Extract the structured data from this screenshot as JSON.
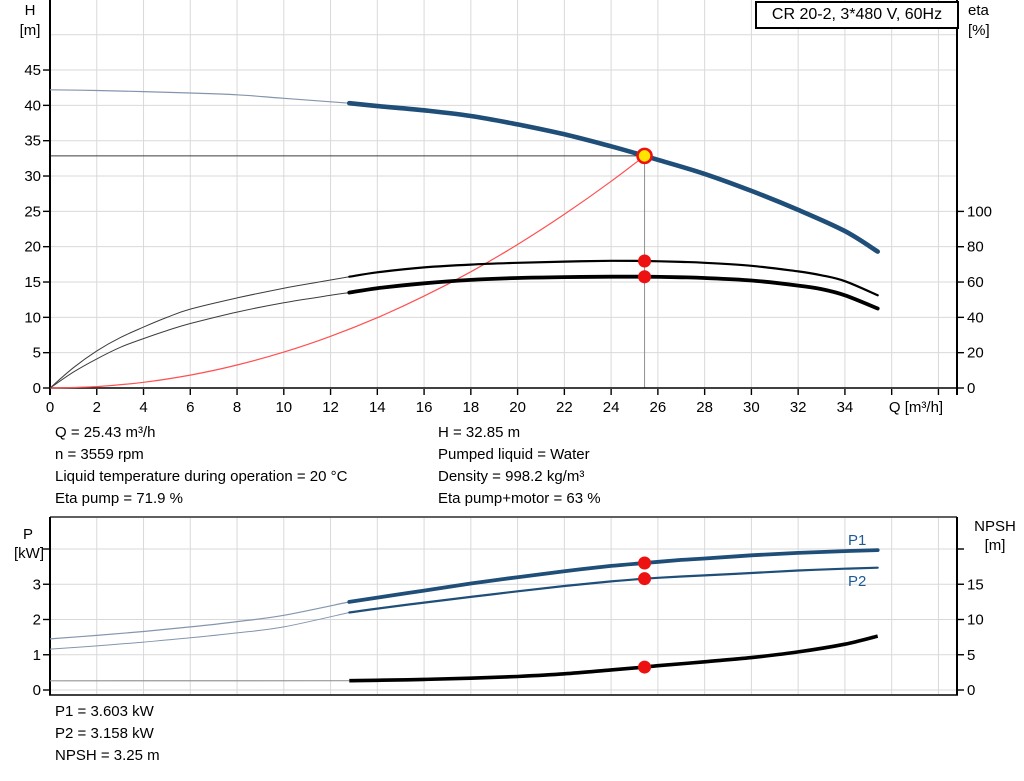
{
  "legend": {
    "label": "CR 20-2, 3*480 V, 60Hz"
  },
  "axis_titles": {
    "top_left_1": "H",
    "top_left_2": "[m]",
    "top_right_1": "eta",
    "top_right_2": "[%]",
    "bottom_left_1": "P",
    "bottom_left_2": "[kW]",
    "bottom_right_1": "NPSH",
    "bottom_right_2": "[m]",
    "x_label": "Q [m³/h]"
  },
  "curve_labels": {
    "p1": "P1",
    "p2": "P2"
  },
  "results_top": {
    "q": "Q = 25.43 m³/h",
    "n": "n = 3559 rpm",
    "temp": "Liquid temperature during operation = 20 °C",
    "eta_pump": "Eta pump = 71.9 %",
    "h": "H = 32.85 m",
    "liquid": "Pumped liquid = Water",
    "density": "Density = 998.2 kg/m³",
    "eta_pm": "Eta pump+motor = 63 %"
  },
  "results_bottom": {
    "p1": "P1 = 3.603 kW",
    "p2": "P2 = 3.158 kW",
    "npsh": "NPSH = 3.25 m"
  },
  "colors": {
    "curve_blue": "#1f4e79",
    "curve_blue_thin": "#8496ae",
    "curve_black": "#000000",
    "curve_black_thin": "#3d3d3d",
    "system_red": "#ff5050",
    "marker_red": "#ee1111",
    "marker_yellow": "#ffe400",
    "grid": "#d9d9d9",
    "npsh_ext_gray": "#999999",
    "crosshair_h": "#3c3c3c",
    "crosshair_v": "#909090",
    "label_blue": "#1f5a96"
  },
  "chart_data": [
    {
      "id": "qh",
      "type": "line",
      "title": "CR 20-2, 3*480 V, 60Hz",
      "xlabel": "Q [m³/h]",
      "ylabel_left": "H [m]",
      "ylabel_right": "eta [%]",
      "grid": true,
      "x_range": [
        0,
        38.8
      ],
      "y_left_range": [
        0,
        54.9
      ],
      "y_right_range": [
        0,
        219.7
      ],
      "x_ticks": [
        0,
        2,
        4,
        6,
        8,
        10,
        12,
        14,
        16,
        18,
        20,
        22,
        24,
        26,
        28,
        30,
        32,
        34
      ],
      "x_ticks_unlabeled": [
        36,
        38
      ],
      "y_left_ticks": [
        0,
        5,
        10,
        15,
        20,
        25,
        30,
        35,
        40,
        45
      ],
      "y_right_ticks": [
        0,
        20,
        40,
        60,
        80,
        100
      ],
      "duty_point": {
        "q": 25.43,
        "h": 32.85,
        "eta_pump": 71.9,
        "eta_pump_motor": 63
      },
      "crosshair": {
        "q": 25.43,
        "h": 32.85
      },
      "series": [
        {
          "id": "pump_h",
          "name": "Pump curve H(Q)",
          "axis": "left",
          "color": "#1f4e79",
          "thin_color": "#8496ae",
          "thin_until": 12.8,
          "points": [
            [
              0,
              42.2
            ],
            [
              2,
              42.1
            ],
            [
              4,
              41.95
            ],
            [
              6,
              41.75
            ],
            [
              8,
              41.5
            ],
            [
              10,
              41.0
            ],
            [
              12.8,
              40.3
            ],
            [
              14,
              39.9
            ],
            [
              16,
              39.3
            ],
            [
              18,
              38.5
            ],
            [
              20,
              37.3
            ],
            [
              22,
              35.9
            ],
            [
              24,
              34.2
            ],
            [
              25.43,
              32.85
            ],
            [
              26,
              32.3
            ],
            [
              28,
              30.3
            ],
            [
              30,
              27.9
            ],
            [
              32,
              25.2
            ],
            [
              34,
              22.2
            ],
            [
              35.4,
              19.3
            ]
          ]
        },
        {
          "id": "eta_pump",
          "name": "Eta pump",
          "axis": "right",
          "color": "#000000",
          "thin_color": "#3d3d3d",
          "thin_until": 12.8,
          "points": [
            [
              0,
              0
            ],
            [
              1,
              11.5
            ],
            [
              2,
              21
            ],
            [
              3,
              28.5
            ],
            [
              4,
              34.5
            ],
            [
              5,
              40
            ],
            [
              6,
              44.7
            ],
            [
              8,
              51
            ],
            [
              10,
              56.5
            ],
            [
              11.5,
              60
            ],
            [
              12.8,
              63
            ],
            [
              14,
              65.5
            ],
            [
              16,
              68.3
            ],
            [
              18,
              69.9
            ],
            [
              20,
              70.9
            ],
            [
              22,
              71.6
            ],
            [
              24,
              72
            ],
            [
              25.43,
              71.9
            ],
            [
              27,
              71.4
            ],
            [
              28,
              70.9
            ],
            [
              30,
              69.2
            ],
            [
              32,
              66
            ],
            [
              33,
              63.8
            ],
            [
              34,
              60.5
            ],
            [
              35.4,
              52.5
            ]
          ]
        },
        {
          "id": "eta_pump_motor",
          "name": "Eta pump+motor",
          "axis": "right",
          "color": "#000000",
          "thin_color": "#3d3d3d",
          "thin_until": 12.8,
          "points": [
            [
              0,
              0
            ],
            [
              1,
              9
            ],
            [
              2,
              16.5
            ],
            [
              3,
              23
            ],
            [
              4,
              28
            ],
            [
              5,
              32.5
            ],
            [
              6,
              36.5
            ],
            [
              8,
              43
            ],
            [
              10,
              48.3
            ],
            [
              12,
              52.5
            ],
            [
              12.8,
              54
            ],
            [
              14,
              56.5
            ],
            [
              16,
              59.3
            ],
            [
              18,
              61.2
            ],
            [
              20,
              62.3
            ],
            [
              22,
              62.8
            ],
            [
              24,
              63
            ],
            [
              25.43,
              63
            ],
            [
              27,
              62.7
            ],
            [
              28,
              62.3
            ],
            [
              30,
              60.9
            ],
            [
              32,
              58
            ],
            [
              33,
              56
            ],
            [
              34,
              52.5
            ],
            [
              35.4,
              45
            ]
          ]
        },
        {
          "id": "system",
          "name": "System curve",
          "axis": "left",
          "color": "#ff5050",
          "points": [
            [
              0,
              0
            ],
            [
              2,
              0.2
            ],
            [
              4,
              0.81
            ],
            [
              6,
              1.83
            ],
            [
              8,
              3.25
            ],
            [
              10,
              5.08
            ],
            [
              12,
              7.31
            ],
            [
              14,
              9.95
            ],
            [
              16,
              13.0
            ],
            [
              18,
              16.45
            ],
            [
              20,
              20.31
            ],
            [
              22,
              24.58
            ],
            [
              24,
              29.25
            ],
            [
              25.43,
              32.85
            ]
          ]
        }
      ],
      "markers": [
        {
          "id": "duty-point",
          "axis": "left",
          "q": 25.43,
          "value": 32.85,
          "style": "yellow-ring"
        },
        {
          "id": "eta-pump-dot",
          "axis": "right",
          "q": 25.43,
          "value": 71.9,
          "style": "red-dot"
        },
        {
          "id": "eta-pump-motor-dot",
          "axis": "right",
          "q": 25.43,
          "value": 63,
          "style": "red-dot"
        }
      ]
    },
    {
      "id": "power_npsh",
      "type": "line",
      "xlabel": "",
      "ylabel_left": "P [kW]",
      "ylabel_right": "NPSH [m]",
      "grid": true,
      "x_range": [
        0,
        38.8
      ],
      "y_left_range": [
        0,
        4.9
      ],
      "y_right_range": [
        0,
        24.5
      ],
      "x_ticks": [],
      "y_left_ticks": [
        0,
        1,
        2,
        3
      ],
      "y_left_ticks_unlabeled": [
        4
      ],
      "y_right_ticks": [
        0,
        5,
        10,
        15
      ],
      "y_right_ticks_unlabeled": [
        20
      ],
      "duty_point": {
        "q": 25.43,
        "p1": 3.603,
        "p2": 3.158,
        "npsh": 3.25
      },
      "series": [
        {
          "id": "p1",
          "name": "P1",
          "axis": "left",
          "color": "#1f4e79",
          "thin_color": "#8496ae",
          "thin_until": 12.8,
          "points": [
            [
              0,
              1.45
            ],
            [
              2,
              1.55
            ],
            [
              4,
              1.66
            ],
            [
              6,
              1.79
            ],
            [
              8,
              1.94
            ],
            [
              10,
              2.12
            ],
            [
              12.8,
              2.5
            ],
            [
              14,
              2.62
            ],
            [
              16,
              2.82
            ],
            [
              18,
              3.02
            ],
            [
              20,
              3.2
            ],
            [
              22,
              3.37
            ],
            [
              24,
              3.52
            ],
            [
              25.43,
              3.603
            ],
            [
              27,
              3.69
            ],
            [
              28,
              3.73
            ],
            [
              30,
              3.82
            ],
            [
              32,
              3.89
            ],
            [
              34,
              3.94
            ],
            [
              35.4,
              3.97
            ]
          ]
        },
        {
          "id": "p2",
          "name": "P2",
          "axis": "left",
          "color": "#1f4e79",
          "thin_color": "#8496ae",
          "thin_until": 12.8,
          "points": [
            [
              0,
              1.16
            ],
            [
              2,
              1.25
            ],
            [
              4,
              1.36
            ],
            [
              6,
              1.48
            ],
            [
              8,
              1.62
            ],
            [
              10,
              1.79
            ],
            [
              12.8,
              2.2
            ],
            [
              14,
              2.31
            ],
            [
              16,
              2.48
            ],
            [
              18,
              2.64
            ],
            [
              20,
              2.8
            ],
            [
              22,
              2.95
            ],
            [
              24,
              3.08
            ],
            [
              25.43,
              3.158
            ],
            [
              27,
              3.22
            ],
            [
              28,
              3.25
            ],
            [
              30,
              3.32
            ],
            [
              32,
              3.39
            ],
            [
              34,
              3.44
            ],
            [
              35.4,
              3.47
            ]
          ]
        },
        {
          "id": "npsh_ext",
          "name": "NPSH low-flow line",
          "axis": "right",
          "color": "#999999",
          "points": [
            [
              0,
              1.3
            ],
            [
              12.8,
              1.32
            ]
          ]
        },
        {
          "id": "npsh",
          "name": "NPSH",
          "axis": "right",
          "color": "#000000",
          "points": [
            [
              12.8,
              1.32
            ],
            [
              14,
              1.38
            ],
            [
              16,
              1.5
            ],
            [
              18,
              1.68
            ],
            [
              20,
              1.92
            ],
            [
              22,
              2.3
            ],
            [
              24,
              2.85
            ],
            [
              25.43,
              3.25
            ],
            [
              26,
              3.45
            ],
            [
              28,
              4.0
            ],
            [
              30,
              4.6
            ],
            [
              32,
              5.4
            ],
            [
              34,
              6.5
            ],
            [
              35.4,
              7.65
            ]
          ]
        }
      ],
      "markers": [
        {
          "id": "p1-dot",
          "axis": "left",
          "q": 25.43,
          "value": 3.603,
          "style": "red-dot"
        },
        {
          "id": "p2-dot",
          "axis": "left",
          "q": 25.43,
          "value": 3.158,
          "style": "red-dot"
        },
        {
          "id": "npsh-dot",
          "axis": "right",
          "q": 25.43,
          "value": 3.25,
          "style": "red-dot"
        }
      ]
    }
  ]
}
